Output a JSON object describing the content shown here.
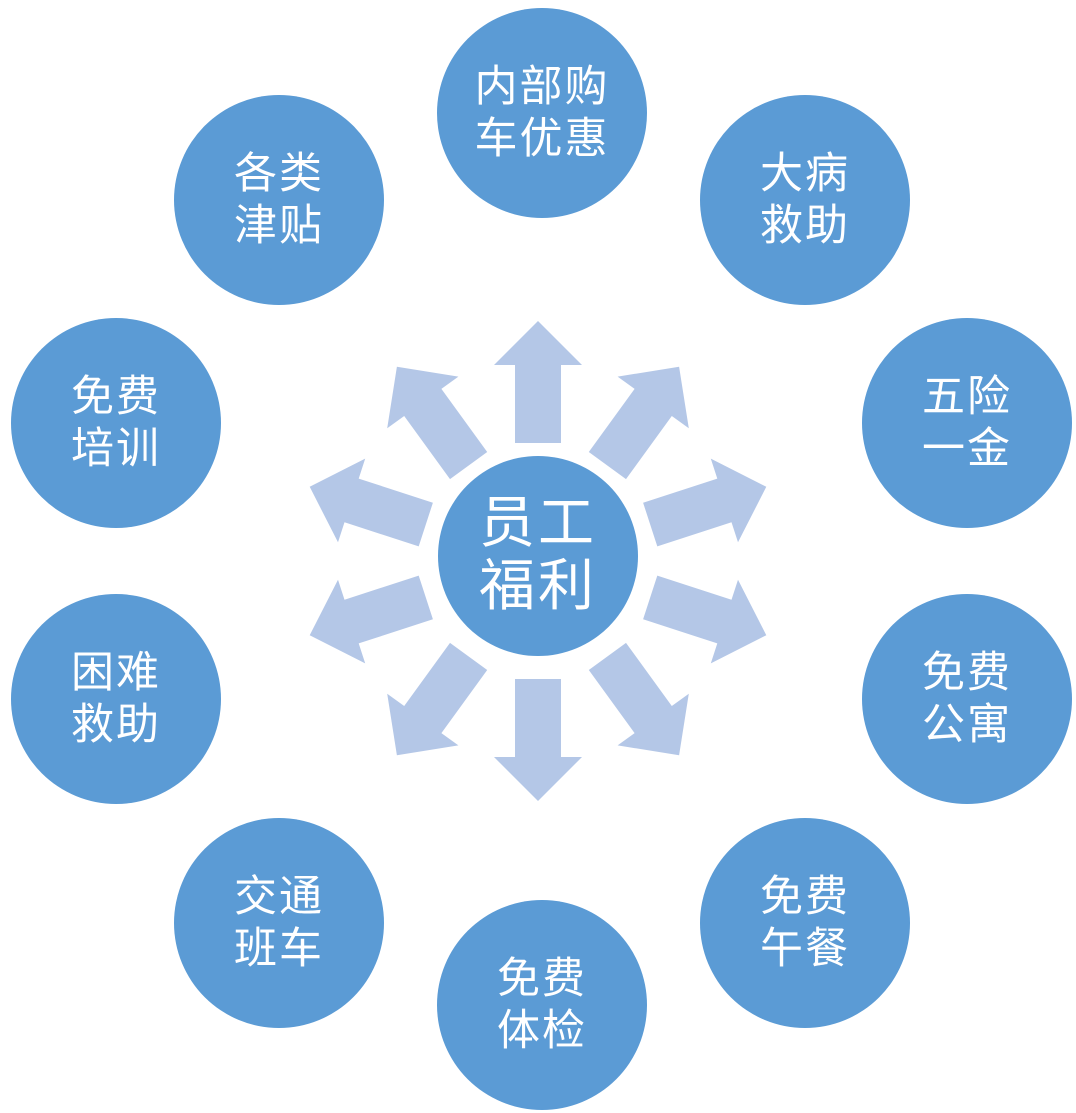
{
  "colors": {
    "node_fill": "#5b9bd5",
    "arrow_fill": "#b4c7e7",
    "text": "#ffffff"
  },
  "center": {
    "line1": "员工",
    "line2": "福利"
  },
  "benefits": [
    {
      "line1": "内部购",
      "line2": "车优惠"
    },
    {
      "line1": "大病",
      "line2": "救助"
    },
    {
      "line1": "五险",
      "line2": "一金"
    },
    {
      "line1": "免费",
      "line2": "公寓"
    },
    {
      "line1": "免费",
      "line2": "午餐"
    },
    {
      "line1": "免费",
      "line2": "体检"
    },
    {
      "line1": "交通",
      "line2": "班车"
    },
    {
      "line1": "困难",
      "line2": "救助"
    },
    {
      "line1": "免费",
      "line2": "培训"
    },
    {
      "line1": "各类",
      "line2": "津贴"
    }
  ]
}
